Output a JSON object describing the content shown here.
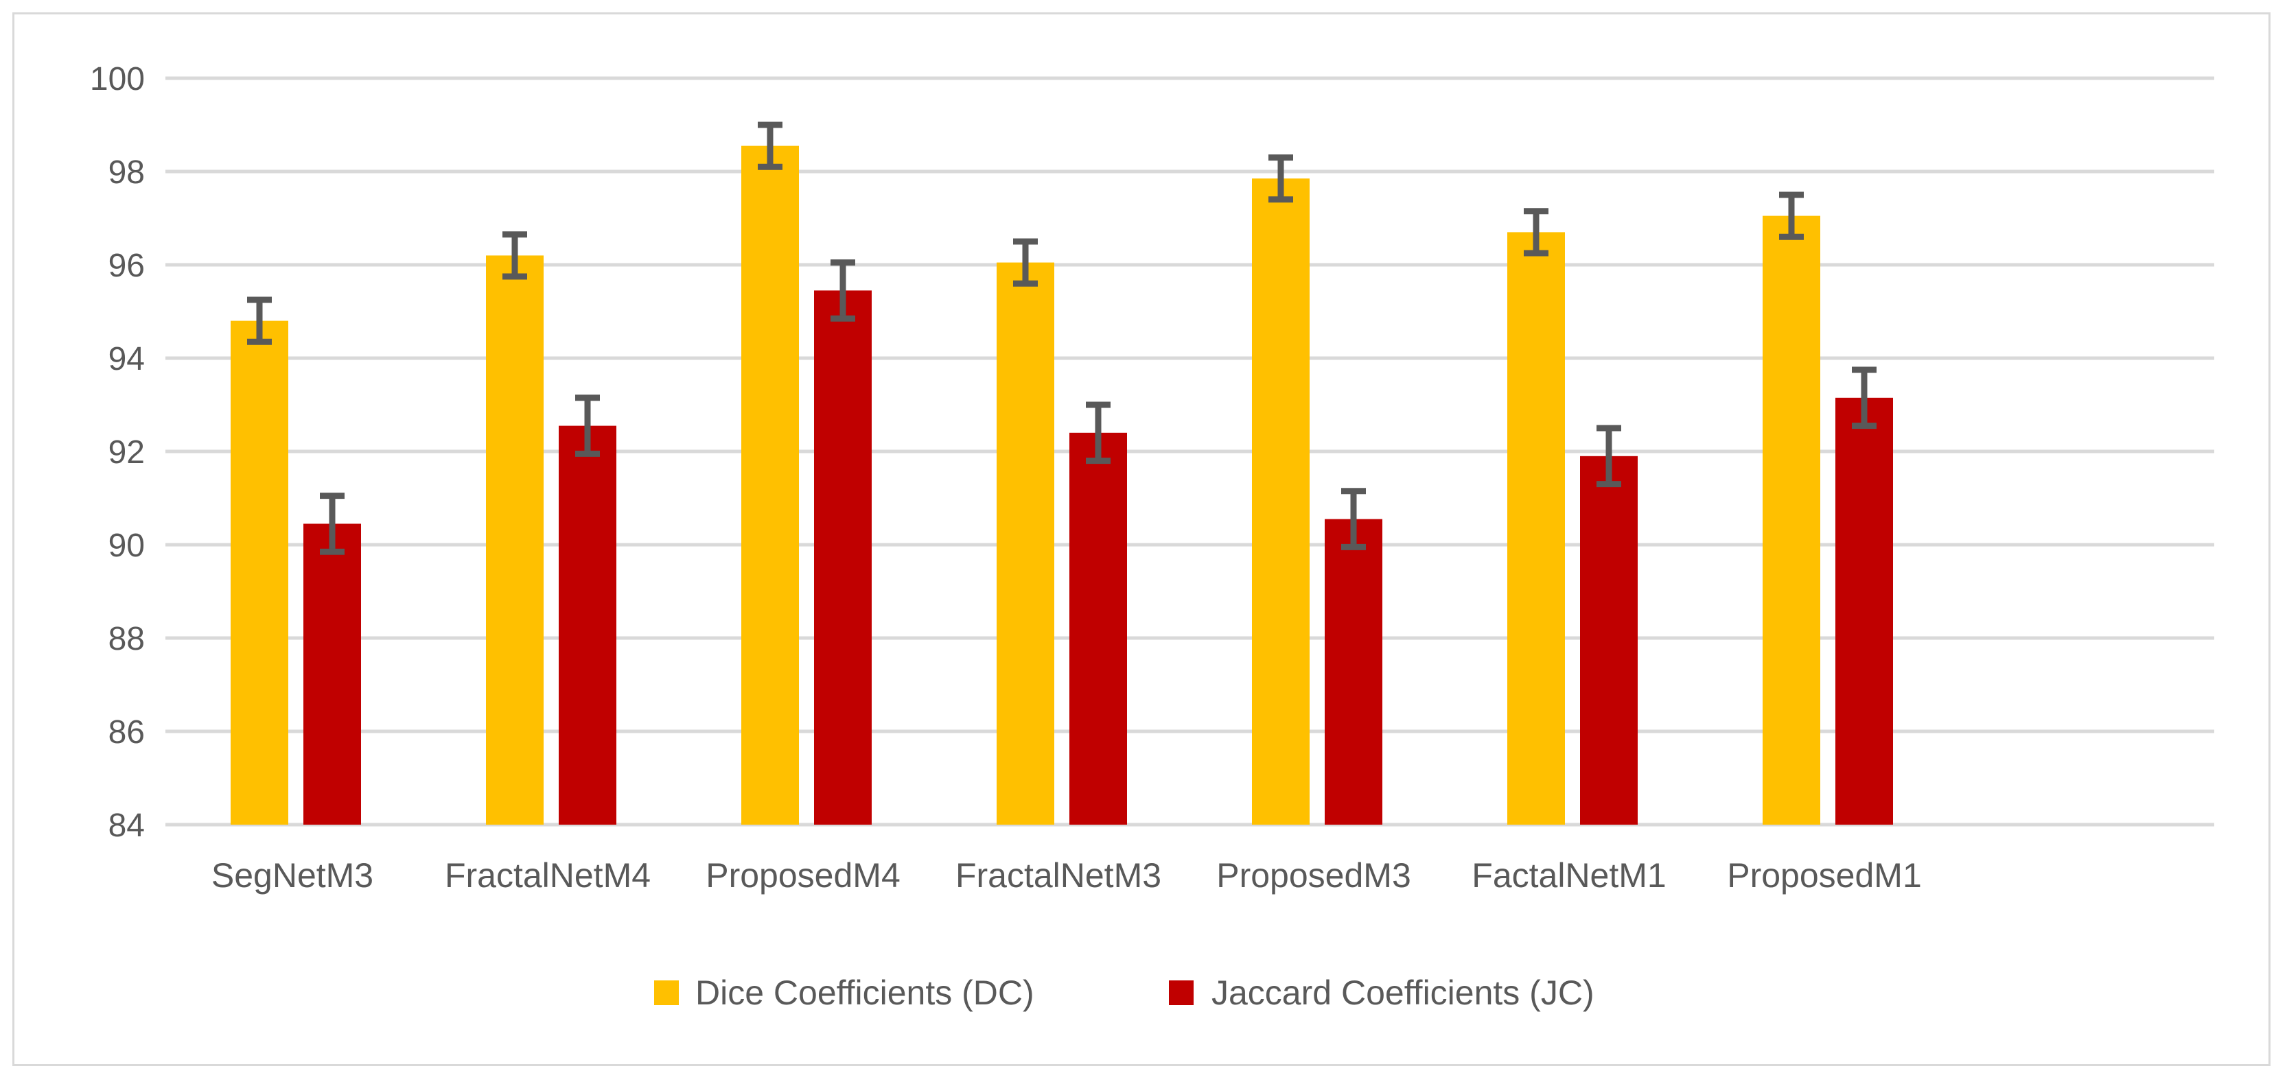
{
  "chart_data": {
    "type": "bar",
    "title": "",
    "xlabel": "",
    "ylabel": "",
    "ylim": [
      84,
      100
    ],
    "yticks": [
      84,
      86,
      88,
      90,
      92,
      94,
      96,
      98,
      100
    ],
    "grid": true,
    "legend_position": "bottom",
    "categories": [
      "SegNetM3",
      "FractalNetM4",
      "ProposedM4",
      "FractalNetM3",
      "ProposedM3",
      "FactalNetM1",
      "ProposedM1"
    ],
    "series": [
      {
        "name": "Dice Coefficients (DC)",
        "color": "#ffc000",
        "values": [
          94.8,
          96.2,
          98.55,
          96.05,
          97.85,
          96.7,
          97.05
        ],
        "error": [
          0.45,
          0.45,
          0.45,
          0.45,
          0.45,
          0.45,
          0.45
        ]
      },
      {
        "name": "Jaccard Coefficients (JC)",
        "color": "#c00000",
        "values": [
          90.45,
          92.55,
          95.45,
          92.4,
          90.55,
          91.9,
          93.15
        ],
        "error": [
          0.6,
          0.6,
          0.6,
          0.6,
          0.6,
          0.6,
          0.6
        ]
      }
    ],
    "error_bar_color": "#595959"
  }
}
